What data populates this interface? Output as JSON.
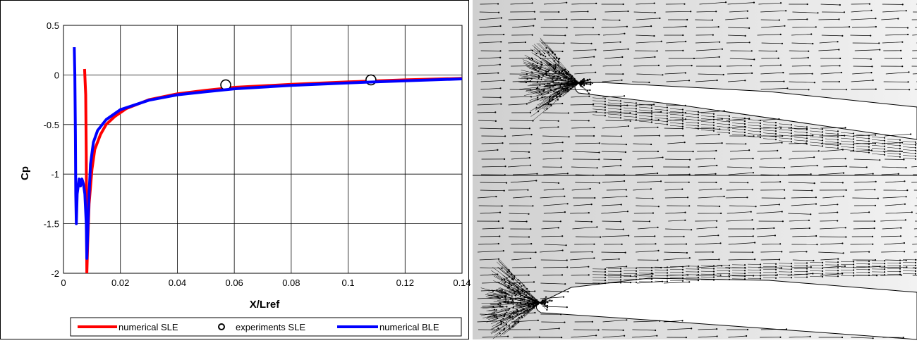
{
  "chart_data": {
    "type": "line",
    "title": "",
    "xlabel": "X/Lref",
    "ylabel": "Cp",
    "xlim": [
      0,
      0.14
    ],
    "ylim": [
      -2,
      0.5
    ],
    "xticks": [
      0,
      0.02,
      0.04,
      0.06,
      0.08,
      0.1,
      0.12,
      0.14
    ],
    "xtick_labels": [
      "0",
      "0.02",
      "0.04",
      "0.06",
      "0.08",
      "0.1",
      "0.12",
      "0.14"
    ],
    "yticks": [
      0.5,
      0,
      -0.5,
      -1,
      -1.5,
      -2
    ],
    "ytick_labels": [
      "0.5",
      "0",
      "-0.5",
      "-1",
      "-1.5",
      "-2"
    ],
    "grid": true,
    "legend_position": "bottom",
    "series": [
      {
        "name": "numerical SLE",
        "style": "line",
        "color": "#ff0000",
        "points": [
          [
            0.0074,
            0.06
          ],
          [
            0.0078,
            -0.2
          ],
          [
            0.008,
            -0.8
          ],
          [
            0.0081,
            -1.5
          ],
          [
            0.0082,
            -2.0
          ],
          [
            0.0085,
            -1.7
          ],
          [
            0.009,
            -1.3
          ],
          [
            0.01,
            -0.95
          ],
          [
            0.011,
            -0.75
          ],
          [
            0.013,
            -0.6
          ],
          [
            0.015,
            -0.5
          ],
          [
            0.018,
            -0.42
          ],
          [
            0.022,
            -0.34
          ],
          [
            0.03,
            -0.25
          ],
          [
            0.04,
            -0.19
          ],
          [
            0.05,
            -0.155
          ],
          [
            0.06,
            -0.125
          ],
          [
            0.08,
            -0.095
          ],
          [
            0.1,
            -0.07
          ],
          [
            0.12,
            -0.05
          ],
          [
            0.14,
            -0.035
          ]
        ]
      },
      {
        "name": "experiments SLE",
        "style": "markers",
        "color": "#000000",
        "points": [
          [
            0.057,
            -0.1
          ],
          [
            0.108,
            -0.05
          ]
        ]
      },
      {
        "name": "numerical BLE",
        "style": "line",
        "color": "#0000ff",
        "points": [
          [
            0.0038,
            0.28
          ],
          [
            0.004,
            0.0
          ],
          [
            0.0042,
            -0.6
          ],
          [
            0.0043,
            -1.2
          ],
          [
            0.0045,
            -1.5
          ],
          [
            0.0048,
            -1.2
          ],
          [
            0.0055,
            -1.05
          ],
          [
            0.006,
            -1.12
          ],
          [
            0.0065,
            -1.05
          ],
          [
            0.007,
            -1.1
          ],
          [
            0.0075,
            -1.2
          ],
          [
            0.008,
            -1.5
          ],
          [
            0.0082,
            -1.85
          ],
          [
            0.0085,
            -1.6
          ],
          [
            0.009,
            -1.2
          ],
          [
            0.0095,
            -0.9
          ],
          [
            0.0105,
            -0.68
          ],
          [
            0.012,
            -0.56
          ],
          [
            0.015,
            -0.45
          ],
          [
            0.02,
            -0.35
          ],
          [
            0.03,
            -0.255
          ],
          [
            0.04,
            -0.2
          ],
          [
            0.05,
            -0.17
          ],
          [
            0.06,
            -0.14
          ],
          [
            0.08,
            -0.105
          ],
          [
            0.1,
            -0.08
          ],
          [
            0.12,
            -0.06
          ],
          [
            0.14,
            -0.04
          ]
        ]
      }
    ]
  },
  "flow_field": {
    "description_colors": {
      "background": "#e8e8e8",
      "vectors": "#000000"
    }
  }
}
